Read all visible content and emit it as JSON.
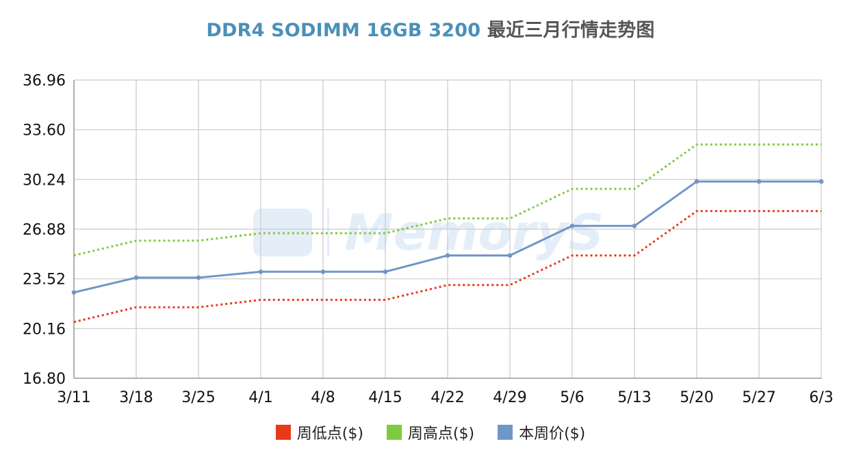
{
  "title": {
    "main": "DDR4 SODIMM 16GB 3200",
    "sub": "最近三月行情走势图"
  },
  "watermark": "MemoryS",
  "chart_data": {
    "type": "line",
    "categories": [
      "3/11",
      "3/18",
      "3/25",
      "4/1",
      "4/8",
      "4/15",
      "4/22",
      "4/29",
      "5/6",
      "5/13",
      "5/20",
      "5/27",
      "6/3"
    ],
    "y_ticks": [
      "36.96",
      "33.60",
      "30.24",
      "26.88",
      "23.52",
      "20.16",
      "16.80"
    ],
    "ylim": [
      16.8,
      36.96
    ],
    "grid": true,
    "legend_position": "bottom",
    "series": [
      {
        "name": "周低点($)",
        "color": "#e8391c",
        "style": "dotted",
        "values": [
          20.6,
          21.6,
          21.6,
          22.1,
          22.1,
          22.1,
          23.1,
          23.1,
          25.1,
          25.1,
          28.1,
          28.1,
          28.1
        ]
      },
      {
        "name": "周高点($)",
        "color": "#7fc93f",
        "style": "dotted",
        "values": [
          25.1,
          26.1,
          26.1,
          26.6,
          26.6,
          26.6,
          27.6,
          27.6,
          29.6,
          29.6,
          32.6,
          32.6,
          32.6
        ]
      },
      {
        "name": "本周价($)",
        "color": "#7096c8",
        "style": "solid",
        "values": [
          22.6,
          23.6,
          23.6,
          24.0,
          24.0,
          24.0,
          25.1,
          25.1,
          27.1,
          27.1,
          30.1,
          30.1,
          30.1
        ]
      }
    ]
  }
}
